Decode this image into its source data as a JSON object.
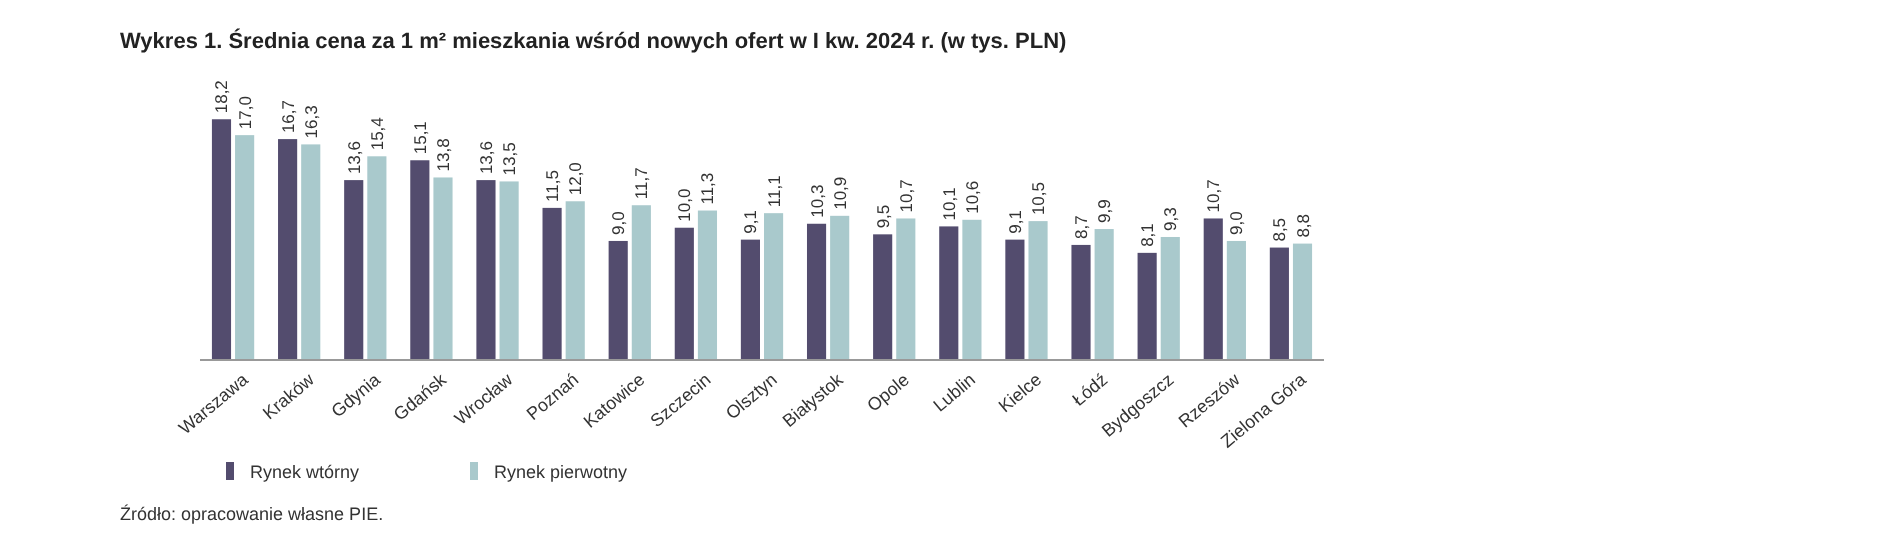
{
  "chart_data": {
    "type": "bar",
    "title": "Wykres 1.  Średnia cena za 1 m² mieszkania wśród nowych ofert w I kw. 2024 r. (w tys. PLN)",
    "categories": [
      "Warszawa",
      "Kraków",
      "Gdynia",
      "Gdańsk",
      "Wrocław",
      "Poznań",
      "Katowice",
      "Szczecin",
      "Olsztyn",
      "Białystok",
      "Opole",
      "Lublin",
      "Kielce",
      "Łódź",
      "Bydgoszcz",
      "Rzeszów",
      "Zielona Góra"
    ],
    "series": [
      {
        "name": "Rynek wtórny",
        "color": "#534c6e",
        "values": [
          18.2,
          16.7,
          13.6,
          15.1,
          13.6,
          11.5,
          9.0,
          10.0,
          9.1,
          10.3,
          9.5,
          10.1,
          9.1,
          8.7,
          8.1,
          10.7,
          8.5
        ],
        "value_labels": [
          "18,2",
          "16,7",
          "13,6",
          "15,1",
          "13,6",
          "11,5",
          "9,0",
          "10,0",
          "9,1",
          "10,3",
          "9,5",
          "10,1",
          "9,1",
          "8,7",
          "8,1",
          "10,7",
          "8,5"
        ]
      },
      {
        "name": "Rynek pierwotny",
        "color": "#a9c9cc",
        "values": [
          17.0,
          16.3,
          15.4,
          13.8,
          13.5,
          12.0,
          11.7,
          11.3,
          11.1,
          10.9,
          10.7,
          10.6,
          10.5,
          9.9,
          9.3,
          9.0,
          8.8
        ],
        "value_labels": [
          "17,0",
          "16,3",
          "15,4",
          "13,8",
          "13,5",
          "12,0",
          "11,7",
          "11,3",
          "11,1",
          "10,9",
          "10,7",
          "10,6",
          "10,5",
          "9,9",
          "9,3",
          "9,0",
          "8,8"
        ]
      }
    ],
    "tick_labels": "x",
    "legend": "bottom",
    "annotations": [
      "Źródło: opracowanie własne PIE."
    ]
  }
}
